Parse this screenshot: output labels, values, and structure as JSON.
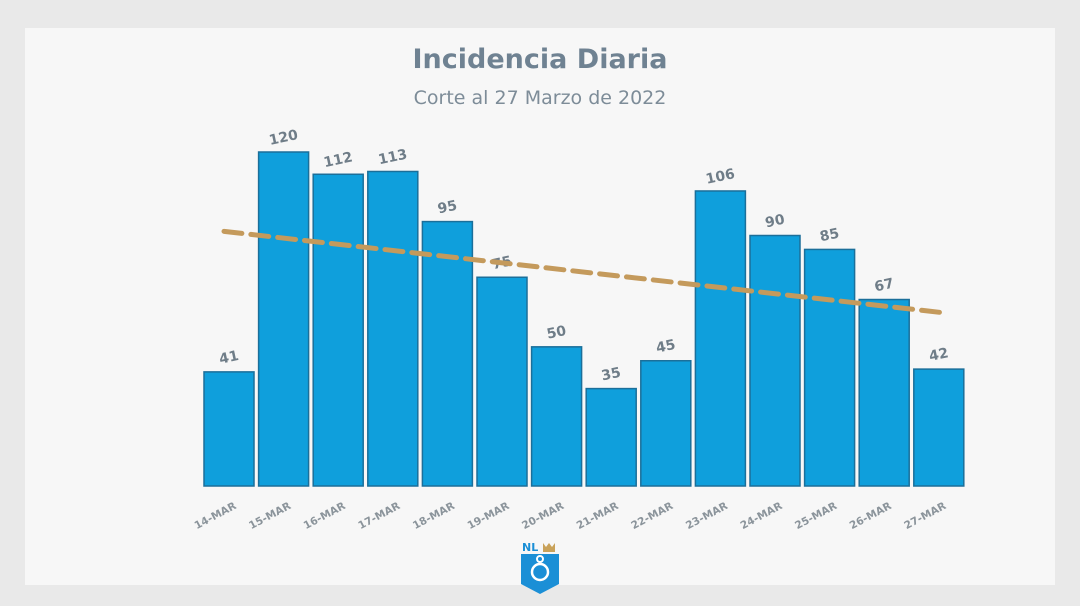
{
  "chart_data": {
    "type": "bar",
    "title": "Incidencia Diaria",
    "subtitle": "Corte al 27 Marzo de 2022",
    "categories": [
      "14-MAR",
      "15-MAR",
      "16-MAR",
      "17-MAR",
      "18-MAR",
      "19-MAR",
      "20-MAR",
      "21-MAR",
      "22-MAR",
      "23-MAR",
      "24-MAR",
      "25-MAR",
      "26-MAR",
      "27-MAR"
    ],
    "values": [
      41,
      120,
      112,
      113,
      95,
      75,
      50,
      35,
      45,
      106,
      90,
      85,
      67,
      42
    ],
    "trendline": "linear",
    "ylim": [
      0,
      120
    ],
    "grid": false,
    "colors": {
      "bar": "#0f9fdc",
      "bar_border": "#1b6f9a",
      "trend": "#c49a5c",
      "text": "#6f7d88"
    }
  },
  "logo": {
    "text": "NL"
  }
}
